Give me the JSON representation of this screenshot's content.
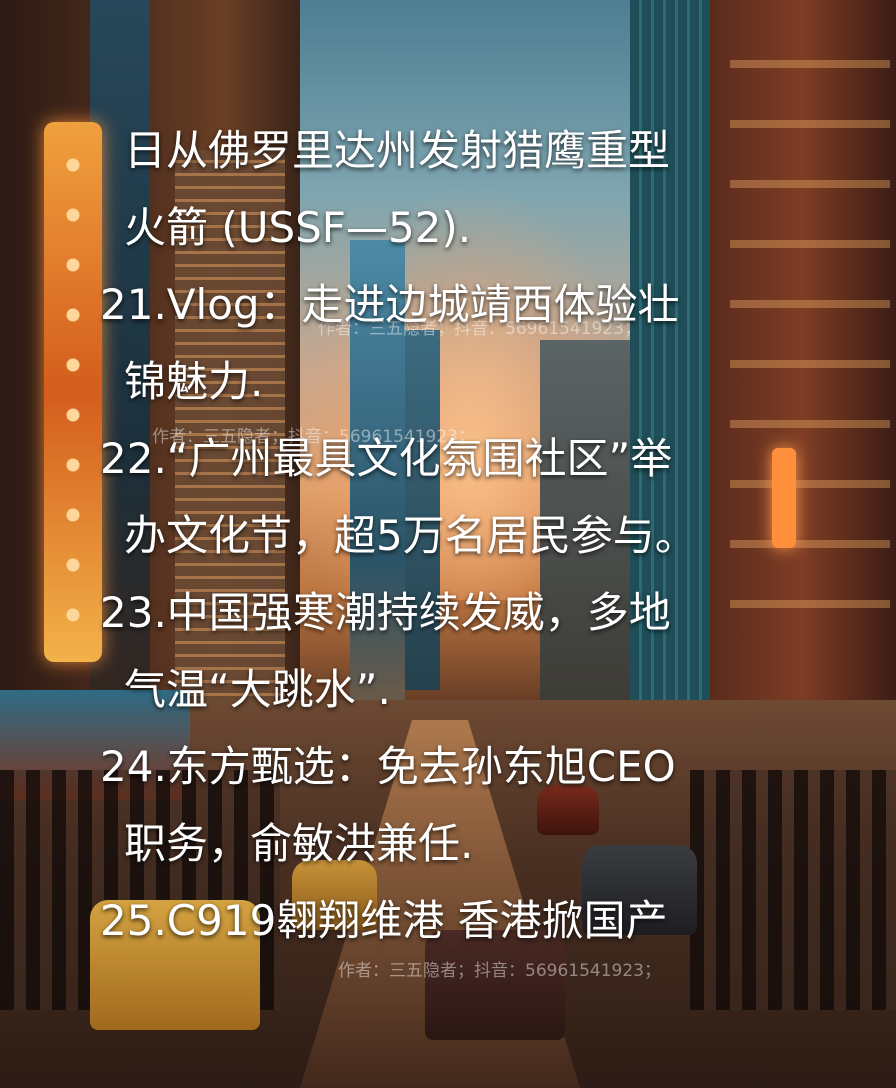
{
  "text_lines": [
    "日从佛罗里达州发射猎鹰重型",
    "火箭 (USSF—52).",
    "21.Vlog：走进边城靖西体验壮",
    "锦魅力.",
    "22.“广州最具文化氛围社区”举",
    "办文化节，超5万名居民参与。",
    "23.中国强寒潮持续发威，多地",
    "气温“大跳水”.",
    "24.东方甄选：免去孙东旭CEO",
    "职务，俞敏洪兼任.",
    "25.C919翱翔维港 香港掀国产"
  ],
  "watermarks": [
    "作者：三五隐者；抖音：56961541923；",
    "作者：三五隐者；抖音：56961541923；",
    "作者：三五隐者；抖音：56961541923；"
  ]
}
